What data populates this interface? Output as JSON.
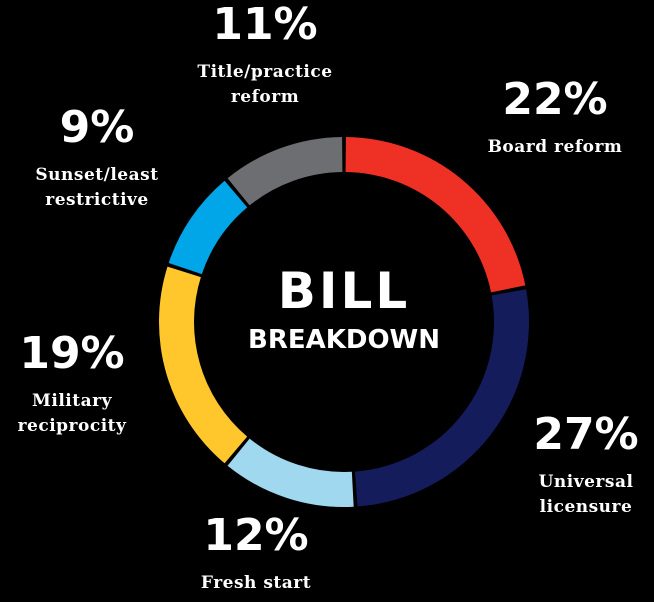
{
  "chart_data": {
    "type": "pie",
    "title": "BILL",
    "subtitle": "BREAKDOWN",
    "series": [
      {
        "name": "Board reform",
        "percent_label": "22%",
        "value": 22,
        "color": "#ee3124",
        "label_lines": [
          "Board reform"
        ]
      },
      {
        "name": "Universal licensure",
        "percent_label": "27%",
        "value": 27,
        "color": "#141c5c",
        "label_lines": [
          "Universal",
          "licensure"
        ]
      },
      {
        "name": "Fresh start",
        "percent_label": "12%",
        "value": 12,
        "color": "#9fd8ef",
        "label_lines": [
          "Fresh start"
        ]
      },
      {
        "name": "Military reciprocity",
        "percent_label": "19%",
        "value": 19,
        "color": "#ffc72c",
        "label_lines": [
          "Military",
          "reciprocity"
        ]
      },
      {
        "name": "Sunset/least restrictive",
        "percent_label": "9%",
        "value": 9,
        "color": "#00a6e8",
        "label_lines": [
          "Sunset/least",
          "restrictive"
        ]
      },
      {
        "name": "Title/practice reform",
        "percent_label": "11%",
        "value": 11,
        "color": "#6d6e71",
        "label_lines": [
          "Title/practice",
          "reform"
        ]
      }
    ]
  }
}
